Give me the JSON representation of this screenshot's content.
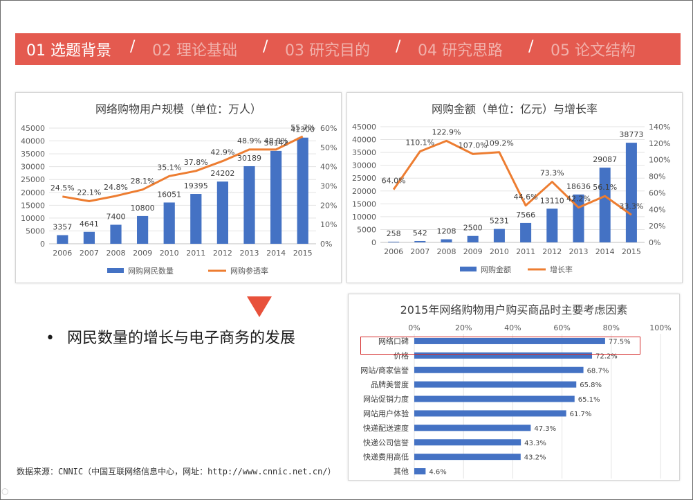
{
  "nav": {
    "items": [
      {
        "label": "01 选题背景",
        "active": true
      },
      {
        "label": "02 理论基础",
        "active": false
      },
      {
        "label": "03 研究目的",
        "active": false
      },
      {
        "label": "04 研究思路",
        "active": false
      },
      {
        "label": "05 论文结构",
        "active": false
      }
    ],
    "separator": "/"
  },
  "bullet": {
    "dot": "•",
    "text": "网民数量的增长与电子商务的发展"
  },
  "source_note": "数据来源：CNNIC（中国互联网络信息中心，网址：http://www.cnnic.net.cn/）",
  "corner_mark": "○",
  "colors": {
    "bar": "#4472c4",
    "line": "#ed7d31",
    "nav_bg": "#e45a4f",
    "arrow": "#e8513b",
    "highlight": "#d42a2a"
  },
  "chart_data": [
    {
      "type": "bar",
      "title": "网络购物用户规模（单位：万人）",
      "categories": [
        "2006",
        "2007",
        "2008",
        "2009",
        "2010",
        "2011",
        "2012",
        "2013",
        "2014",
        "2015"
      ],
      "series": [
        {
          "name": "网购网民数量",
          "type": "bar",
          "axis": "left",
          "values": [
            3357,
            4641,
            7400,
            10800,
            16051,
            19395,
            24202,
            30189,
            36142,
            41300
          ]
        },
        {
          "name": "网购参透率",
          "type": "line",
          "axis": "right",
          "values": [
            24.5,
            22.1,
            24.8,
            28.1,
            35.1,
            37.8,
            42.9,
            48.9,
            48.9,
            55.7
          ]
        }
      ],
      "left_ticks": [
        "0",
        "5000",
        "10000",
        "15000",
        "20000",
        "25000",
        "30000",
        "35000",
        "40000",
        "45000"
      ],
      "right_ticks": [
        "0%",
        "10%",
        "20%",
        "30%",
        "40%",
        "50%",
        "60%"
      ],
      "ylim": [
        0,
        45000
      ],
      "y2lim": [
        0,
        60
      ],
      "line_labels": [
        "24.5%",
        "22.1%",
        "24.8%",
        "28.1%",
        "35.1%",
        "37.8%",
        "42.9%",
        "48.9%",
        "48.9%",
        "55.7%"
      ],
      "legend": "bottom",
      "grid": true
    },
    {
      "type": "bar",
      "title": "网购金额（单位：亿元）与增长率",
      "categories": [
        "2006",
        "2007",
        "2008",
        "2009",
        "2010",
        "2011",
        "2012",
        "2013",
        "2014",
        "2015"
      ],
      "series": [
        {
          "name": "网购金额",
          "type": "bar",
          "axis": "left",
          "values": [
            258,
            542,
            1208,
            2500,
            5231,
            7566,
            13110,
            18636,
            29087,
            38773
          ]
        },
        {
          "name": "增长率",
          "type": "line",
          "axis": "right",
          "values": [
            64.0,
            110.1,
            122.9,
            107.0,
            109.2,
            44.6,
            73.3,
            42.2,
            56.1,
            33.3
          ]
        }
      ],
      "left_ticks": [
        "0",
        "5000",
        "10000",
        "15000",
        "20000",
        "25000",
        "30000",
        "35000",
        "40000",
        "45000"
      ],
      "right_ticks": [
        "0%",
        "20%",
        "40%",
        "60%",
        "80%",
        "100%",
        "120%",
        "140%"
      ],
      "ylim": [
        0,
        45000
      ],
      "y2lim": [
        0,
        140
      ],
      "line_labels": [
        "64.0%",
        "110.1%",
        "122.9%",
        "107.0%",
        "109.2%",
        "44.6%",
        "73.3%",
        "42.2%",
        "56.1%",
        "33.3%"
      ],
      "legend": "bottom",
      "grid": true
    },
    {
      "type": "bar",
      "orientation": "horizontal",
      "title": "2015年网络购物用户购买商品时主要考虑因素",
      "categories": [
        "网络口碑",
        "价格",
        "网站/商家信誉",
        "品牌美誉度",
        "网站促销力度",
        "网站用户体验",
        "快递配送速度",
        "快递公司信誉",
        "快递费用高低",
        "其他"
      ],
      "values": [
        77.5,
        72.2,
        68.7,
        65.8,
        65.1,
        61.7,
        47.3,
        43.3,
        43.2,
        4.6
      ],
      "value_labels": [
        "77.5%",
        "72.2%",
        "68.7%",
        "65.8%",
        "65.1%",
        "61.7%",
        "47.3%",
        "43.3%",
        "43.2%",
        "4.6%"
      ],
      "xticks": [
        "0%",
        "20%",
        "40%",
        "60%",
        "80%",
        "100%"
      ],
      "xlim": [
        0,
        100
      ],
      "highlight_category": "网络口碑",
      "grid": true
    }
  ]
}
